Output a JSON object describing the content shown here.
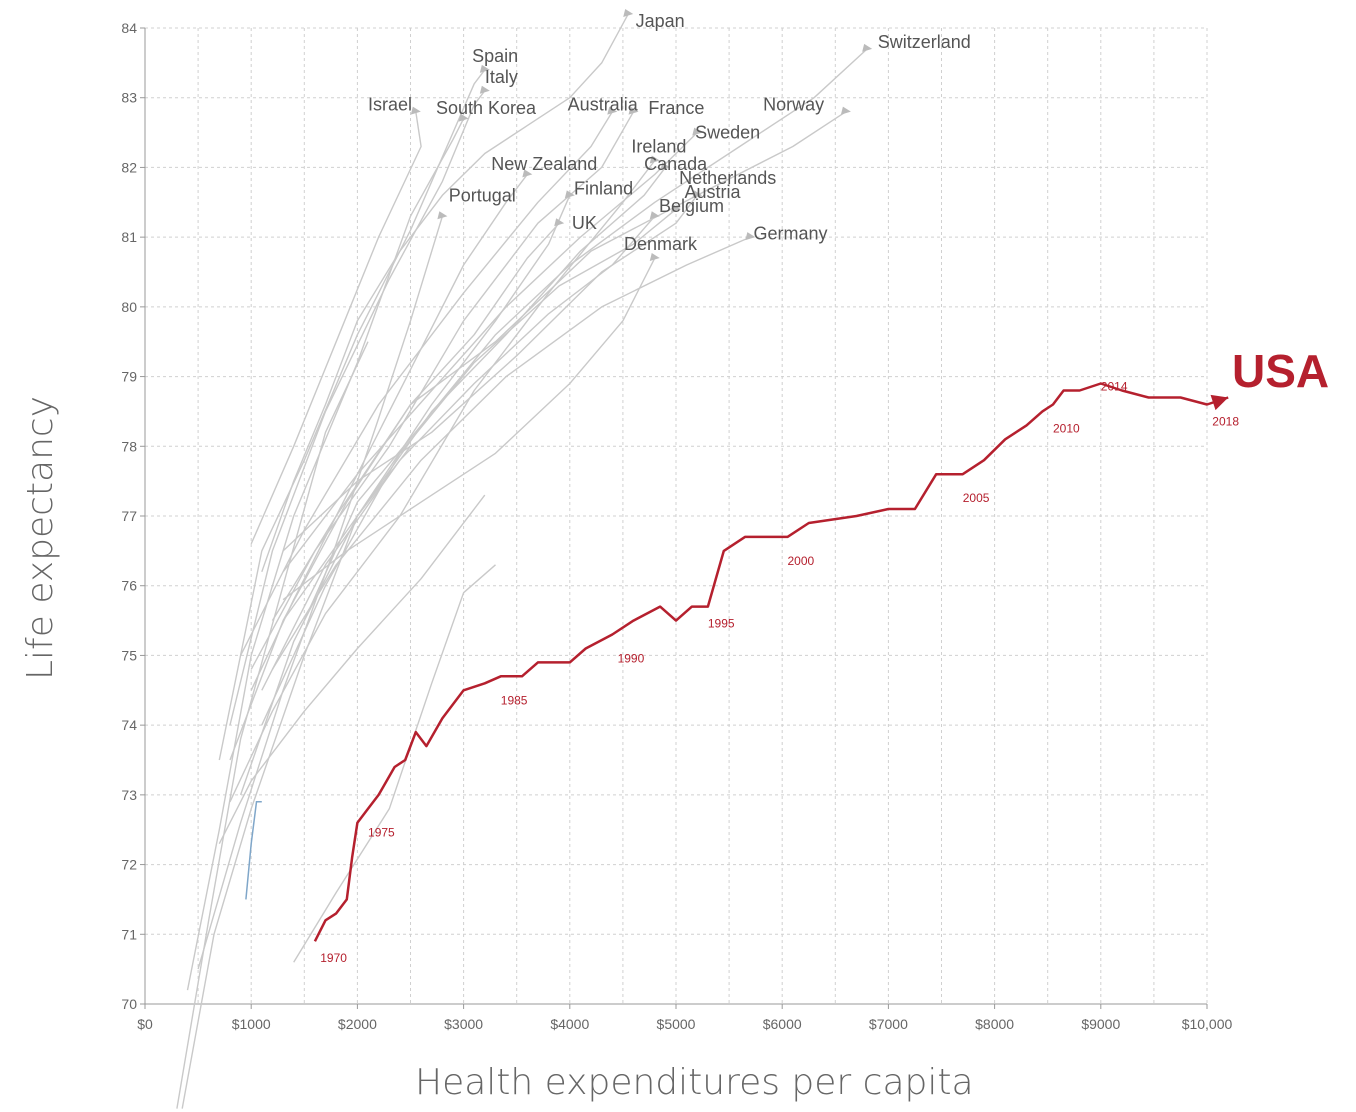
{
  "chart_data": {
    "type": "line",
    "xlabel": "Health expenditures per capita",
    "ylabel": "Life expectancy",
    "xlim": [
      0,
      10000
    ],
    "ylim": [
      70,
      84
    ],
    "x_ticks": [
      0,
      1000,
      2000,
      3000,
      4000,
      5000,
      6000,
      7000,
      8000,
      9000,
      10000
    ],
    "x_tick_labels": [
      "$0",
      "$1000",
      "$2000",
      "$3000",
      "$4000",
      "$5000",
      "$6000",
      "$7000",
      "$8000",
      "$9000",
      "$10,000"
    ],
    "y_ticks": [
      70,
      71,
      72,
      73,
      74,
      75,
      76,
      77,
      78,
      79,
      80,
      81,
      82,
      83,
      84
    ],
    "grid": true,
    "highlight": {
      "name": "USA",
      "color": "#b5202e",
      "points": [
        [
          1600,
          70.9
        ],
        [
          1700,
          71.2
        ],
        [
          1800,
          71.3
        ],
        [
          1900,
          71.5
        ],
        [
          1950,
          72.1
        ],
        [
          2000,
          72.6
        ],
        [
          2100,
          72.8
        ],
        [
          2200,
          73.0
        ],
        [
          2350,
          73.4
        ],
        [
          2450,
          73.5
        ],
        [
          2550,
          73.9
        ],
        [
          2650,
          73.7
        ],
        [
          2800,
          74.1
        ],
        [
          3000,
          74.5
        ],
        [
          3200,
          74.6
        ],
        [
          3350,
          74.7
        ],
        [
          3550,
          74.7
        ],
        [
          3700,
          74.9
        ],
        [
          4000,
          74.9
        ],
        [
          4150,
          75.1
        ],
        [
          4400,
          75.3
        ],
        [
          4600,
          75.5
        ],
        [
          4850,
          75.7
        ],
        [
          5000,
          75.5
        ],
        [
          5150,
          75.7
        ],
        [
          5300,
          75.7
        ],
        [
          5450,
          76.5
        ],
        [
          5650,
          76.7
        ],
        [
          6050,
          76.7
        ],
        [
          6250,
          76.9
        ],
        [
          6700,
          77.0
        ],
        [
          7000,
          77.1
        ],
        [
          7250,
          77.1
        ],
        [
          7450,
          77.6
        ],
        [
          7700,
          77.6
        ],
        [
          7900,
          77.8
        ],
        [
          8100,
          78.1
        ],
        [
          8300,
          78.3
        ],
        [
          8450,
          78.5
        ],
        [
          8550,
          78.6
        ],
        [
          8650,
          78.8
        ],
        [
          8800,
          78.8
        ],
        [
          9000,
          78.9
        ],
        [
          9200,
          78.8
        ],
        [
          9450,
          78.7
        ],
        [
          9750,
          78.7
        ],
        [
          10000,
          78.6
        ],
        [
          10200,
          78.7
        ]
      ],
      "year_labels": [
        {
          "text": "1970",
          "x": 1650,
          "y": 70.8
        },
        {
          "text": "1975",
          "x": 2100,
          "y": 72.6
        },
        {
          "text": "1985",
          "x": 3350,
          "y": 74.5
        },
        {
          "text": "1990",
          "x": 4450,
          "y": 75.1
        },
        {
          "text": "1995",
          "x": 5300,
          "y": 75.6
        },
        {
          "text": "2000",
          "x": 6050,
          "y": 76.5
        },
        {
          "text": "2005",
          "x": 7700,
          "y": 77.4
        },
        {
          "text": "2010",
          "x": 8550,
          "y": 78.4
        },
        {
          "text": "2014",
          "x": 9000,
          "y": 79.0
        },
        {
          "text": "2018",
          "x": 10050,
          "y": 78.5
        }
      ]
    },
    "series": [
      {
        "name": "Japan",
        "points": [
          [
            1100,
            76.2
          ],
          [
            1400,
            77.5
          ],
          [
            1700,
            78.6
          ],
          [
            2000,
            79.8
          ],
          [
            2400,
            80.8
          ],
          [
            2800,
            81.6
          ],
          [
            3200,
            82.2
          ],
          [
            3600,
            82.6
          ],
          [
            4000,
            83.0
          ],
          [
            4300,
            83.5
          ],
          [
            4550,
            84.2
          ]
        ]
      },
      {
        "name": "Switzerland",
        "points": [
          [
            1500,
            75.5
          ],
          [
            2000,
            77.2
          ],
          [
            2600,
            78.3
          ],
          [
            3300,
            79.6
          ],
          [
            4000,
            80.6
          ],
          [
            4800,
            81.5
          ],
          [
            5600,
            82.3
          ],
          [
            6300,
            83.0
          ],
          [
            6800,
            83.7
          ]
        ]
      },
      {
        "name": "Spain",
        "points": [
          [
            700,
            73.5
          ],
          [
            1100,
            76.5
          ],
          [
            1500,
            77.8
          ],
          [
            2000,
            79.6
          ],
          [
            2500,
            81.1
          ],
          [
            2900,
            82.5
          ],
          [
            3100,
            83.2
          ],
          [
            3200,
            83.4
          ]
        ]
      },
      {
        "name": "Italy",
        "points": [
          [
            800,
            74.0
          ],
          [
            1200,
            76.5
          ],
          [
            1700,
            78.5
          ],
          [
            2300,
            80.4
          ],
          [
            2800,
            81.8
          ],
          [
            3100,
            82.9
          ],
          [
            3200,
            83.1
          ]
        ]
      },
      {
        "name": "Israel",
        "points": [
          [
            1000,
            76.6
          ],
          [
            1400,
            78.0
          ],
          [
            1800,
            79.5
          ],
          [
            2200,
            81.0
          ],
          [
            2600,
            82.3
          ],
          [
            2550,
            82.8
          ]
        ]
      },
      {
        "name": "South Korea",
        "points": [
          [
            400,
            70.2
          ],
          [
            700,
            72.5
          ],
          [
            1000,
            75.0
          ],
          [
            1400,
            77.0
          ],
          [
            2000,
            79.2
          ],
          [
            2500,
            81.3
          ],
          [
            2900,
            82.4
          ],
          [
            3000,
            82.7
          ]
        ]
      },
      {
        "name": "Australia",
        "points": [
          [
            900,
            75.0
          ],
          [
            1500,
            76.8
          ],
          [
            2200,
            78.6
          ],
          [
            3000,
            80.2
          ],
          [
            3700,
            81.5
          ],
          [
            4200,
            82.3
          ],
          [
            4400,
            82.8
          ]
        ]
      },
      {
        "name": "France",
        "points": [
          [
            1000,
            74.8
          ],
          [
            1600,
            76.5
          ],
          [
            2300,
            78.0
          ],
          [
            3000,
            79.8
          ],
          [
            3700,
            81.2
          ],
          [
            4300,
            82.0
          ],
          [
            4600,
            82.8
          ]
        ]
      },
      {
        "name": "Norway",
        "points": [
          [
            1200,
            75.5
          ],
          [
            1800,
            77.0
          ],
          [
            2500,
            78.6
          ],
          [
            3300,
            79.5
          ],
          [
            4200,
            80.8
          ],
          [
            5200,
            81.6
          ],
          [
            6100,
            82.3
          ],
          [
            6600,
            82.8
          ]
        ]
      },
      {
        "name": "Sweden",
        "points": [
          [
            1300,
            76.2
          ],
          [
            2000,
            77.6
          ],
          [
            2700,
            78.8
          ],
          [
            3400,
            80.0
          ],
          [
            4100,
            81.0
          ],
          [
            4800,
            81.9
          ],
          [
            5200,
            82.5
          ]
        ]
      },
      {
        "name": "Ireland",
        "points": [
          [
            800,
            72.9
          ],
          [
            1200,
            74.2
          ],
          [
            1700,
            75.6
          ],
          [
            2400,
            77.0
          ],
          [
            3100,
            78.8
          ],
          [
            3800,
            80.2
          ],
          [
            4500,
            81.5
          ],
          [
            4800,
            82.1
          ]
        ]
      },
      {
        "name": "Canada",
        "points": [
          [
            1300,
            75.5
          ],
          [
            2000,
            77.0
          ],
          [
            2700,
            78.5
          ],
          [
            3400,
            79.6
          ],
          [
            4100,
            80.8
          ],
          [
            4700,
            81.6
          ],
          [
            4900,
            82.0
          ]
        ]
      },
      {
        "name": "New Zealand",
        "points": [
          [
            1000,
            74.5
          ],
          [
            1400,
            75.8
          ],
          [
            1900,
            77.3
          ],
          [
            2500,
            79.1
          ],
          [
            3000,
            80.6
          ],
          [
            3400,
            81.5
          ],
          [
            3600,
            81.9
          ]
        ]
      },
      {
        "name": "Netherlands",
        "points": [
          [
            1300,
            76.5
          ],
          [
            2000,
            77.5
          ],
          [
            2700,
            78.2
          ],
          [
            3500,
            79.3
          ],
          [
            4300,
            80.5
          ],
          [
            5000,
            81.2
          ],
          [
            5200,
            81.6
          ]
        ]
      },
      {
        "name": "Finland",
        "points": [
          [
            900,
            73.0
          ],
          [
            1400,
            75.2
          ],
          [
            2000,
            77.0
          ],
          [
            2700,
            78.6
          ],
          [
            3300,
            79.8
          ],
          [
            3800,
            80.9
          ],
          [
            4000,
            81.6
          ]
        ]
      },
      {
        "name": "Austria",
        "points": [
          [
            1100,
            74.0
          ],
          [
            1700,
            76.0
          ],
          [
            2400,
            77.9
          ],
          [
            3100,
            79.2
          ],
          [
            3900,
            80.3
          ],
          [
            4600,
            80.9
          ],
          [
            5000,
            81.4
          ]
        ]
      },
      {
        "name": "Portugal",
        "points": [
          [
            500,
            70.5
          ],
          [
            900,
            72.6
          ],
          [
            1300,
            74.5
          ],
          [
            1800,
            76.6
          ],
          [
            2200,
            78.4
          ],
          [
            2500,
            79.8
          ],
          [
            2800,
            81.3
          ]
        ]
      },
      {
        "name": "Belgium",
        "points": [
          [
            1100,
            74.5
          ],
          [
            1700,
            76.3
          ],
          [
            2400,
            77.8
          ],
          [
            3100,
            78.9
          ],
          [
            3800,
            79.9
          ],
          [
            4400,
            80.6
          ],
          [
            4800,
            81.3
          ]
        ]
      },
      {
        "name": "UK",
        "points": [
          [
            800,
            73.5
          ],
          [
            1300,
            75.5
          ],
          [
            1900,
            77.2
          ],
          [
            2500,
            78.6
          ],
          [
            3100,
            79.6
          ],
          [
            3600,
            80.7
          ],
          [
            3900,
            81.2
          ]
        ]
      },
      {
        "name": "Denmark",
        "points": [
          [
            1300,
            75.8
          ],
          [
            1900,
            76.5
          ],
          [
            2600,
            77.2
          ],
          [
            3300,
            77.9
          ],
          [
            4000,
            78.9
          ],
          [
            4500,
            79.8
          ],
          [
            4800,
            80.7
          ]
        ]
      },
      {
        "name": "Germany",
        "points": [
          [
            1200,
            74.8
          ],
          [
            1800,
            76.3
          ],
          [
            2600,
            77.8
          ],
          [
            3400,
            79.0
          ],
          [
            4300,
            80.0
          ],
          [
            5100,
            80.6
          ],
          [
            5700,
            81.0
          ]
        ]
      },
      {
        "name": "",
        "points": [
          [
            300,
            68.5
          ],
          [
            600,
            71.2
          ],
          [
            900,
            73.8
          ],
          [
            1300,
            76.0
          ],
          [
            1700,
            78.2
          ],
          [
            2100,
            79.5
          ]
        ]
      },
      {
        "name": "",
        "points": [
          [
            350,
            68.5
          ],
          [
            650,
            71.0
          ],
          [
            1000,
            72.8
          ],
          [
            1500,
            75.0
          ],
          [
            2000,
            77.0
          ],
          [
            2500,
            78.0
          ]
        ]
      },
      {
        "name": "",
        "points": [
          [
            1400,
            70.6
          ],
          [
            1800,
            71.6
          ],
          [
            2300,
            72.8
          ],
          [
            2700,
            74.6
          ],
          [
            3000,
            75.9
          ],
          [
            3300,
            76.3
          ]
        ]
      },
      {
        "name": "",
        "points": [
          [
            700,
            72.3
          ],
          [
            1000,
            73.2
          ],
          [
            1500,
            74.2
          ],
          [
            2000,
            75.1
          ],
          [
            2600,
            76.1
          ],
          [
            3200,
            77.3
          ]
        ]
      }
    ],
    "blue_segment": {
      "color": "#7fa6c9",
      "points": [
        [
          950,
          71.5
        ],
        [
          1000,
          72.3
        ],
        [
          1050,
          72.9
        ],
        [
          1100,
          72.9
        ]
      ]
    },
    "country_labels": [
      {
        "text": "Japan",
        "x": 4620,
        "y": 84.1
      },
      {
        "text": "Switzerland",
        "x": 6900,
        "y": 83.8
      },
      {
        "text": "Spain",
        "x": 3080,
        "y": 83.6
      },
      {
        "text": "Italy",
        "x": 3200,
        "y": 83.3
      },
      {
        "text": "Israel",
        "x": 2100,
        "y": 82.9
      },
      {
        "text": "South Korea",
        "x": 2740,
        "y": 82.85
      },
      {
        "text": "Australia",
        "x": 3980,
        "y": 82.9
      },
      {
        "text": "France",
        "x": 4740,
        "y": 82.85
      },
      {
        "text": "Norway",
        "x": 5820,
        "y": 82.9
      },
      {
        "text": "Sweden",
        "x": 5180,
        "y": 82.5
      },
      {
        "text": "Ireland",
        "x": 4580,
        "y": 82.3
      },
      {
        "text": "Canada",
        "x": 4700,
        "y": 82.05
      },
      {
        "text": "New Zealand",
        "x": 3260,
        "y": 82.05
      },
      {
        "text": "Netherlands",
        "x": 5030,
        "y": 81.85
      },
      {
        "text": "Finland",
        "x": 4040,
        "y": 81.7
      },
      {
        "text": "Austria",
        "x": 5080,
        "y": 81.65
      },
      {
        "text": "Portugal",
        "x": 2860,
        "y": 81.6
      },
      {
        "text": "Belgium",
        "x": 4840,
        "y": 81.45
      },
      {
        "text": "UK",
        "x": 4020,
        "y": 81.2
      },
      {
        "text": "Germany",
        "x": 5730,
        "y": 81.05
      },
      {
        "text": "Denmark",
        "x": 4510,
        "y": 80.9
      }
    ]
  }
}
